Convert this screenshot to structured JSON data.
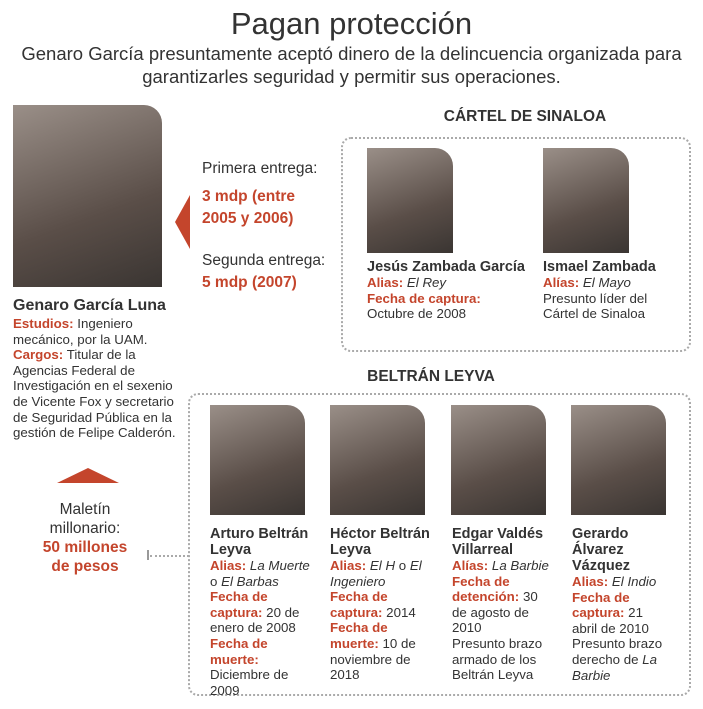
{
  "title": "Pagan protección",
  "subtitle": [
    "Genaro García presuntamente aceptó dinero de la delincuencia organizada para",
    "garantizarles seguridad y permitir sus operaciones."
  ],
  "colors": {
    "accent": "#c4452c",
    "text": "#333333",
    "border": "#aaaaaa"
  },
  "payments": {
    "first_label": "Primera entrega:",
    "first_value_1": "3 mdp (entre",
    "first_value_2": "2005 y 2006)",
    "second_label": "Segunda entrega:",
    "second_value": "5 mdp (2007)"
  },
  "main": {
    "name": "Genaro García Luna",
    "studies_label": "Estudios:",
    "studies": "Ingeniero mecánico, por la UAM.",
    "cargos_label": "Cargos:",
    "cargos": "Titular de la Agencias Federal de Investigación en el sexenio de Vicente Fox y secretario de Seguridad Pública en la gestión de Felipe Calderón."
  },
  "briefcase": {
    "label_1": "Maletín",
    "label_2": "millonario:",
    "value_1": "50 millones",
    "value_2": "de pesos"
  },
  "sinaloa": {
    "header": "CÁRTEL DE SINALOA",
    "people": [
      {
        "name": "Jesús Zambada García",
        "alias_label": "Alias:",
        "alias": "El Rey",
        "date_label": "Fecha de captura:",
        "date": "Octubre de 2008"
      },
      {
        "name": "Ismael Zambada",
        "alias_label": "Alías:",
        "alias": "El Mayo",
        "note": "Presunto líder del Cártel de Sinaloa"
      }
    ]
  },
  "beltran": {
    "header": "BELTRÁN LEYVA",
    "people": [
      {
        "name": "Arturo Beltrán Leyva",
        "alias_label": "Alias:",
        "alias_1": "La Muerte",
        "alias_sep": " o ",
        "alias_2": "El Barbas",
        "date_label": "Fecha de captura:",
        "date": "20 de enero de 2008",
        "death_label": "Fecha de muerte:",
        "death": "Diciembre de 2009"
      },
      {
        "name": "Héctor Beltrán Leyva",
        "alias_label": "Alias:",
        "alias_1": "El H",
        "alias_sep": " o ",
        "alias_2": "El Ingeniero",
        "date_label": "Fecha de captura:",
        "date": "2014",
        "death_label": "Fecha de muerte:",
        "death": "10 de noviembre de 2018"
      },
      {
        "name": "Edgar Valdés Villarreal",
        "alias_label": "Alías:",
        "alias": "La Barbie",
        "date_label": "Fecha de detención:",
        "date": "30 de agosto de 2010",
        "note": "Presunto brazo armado de los Beltrán Leyva"
      },
      {
        "name": "Gerardo Álvarez Vázquez",
        "alias_label": "Alias:",
        "alias": "El Indio",
        "date_label": "Fecha de captura:",
        "date": "21 abril de 2010",
        "note": "Presunto brazo derecho de ",
        "note_italic": "La Barbie"
      }
    ]
  }
}
